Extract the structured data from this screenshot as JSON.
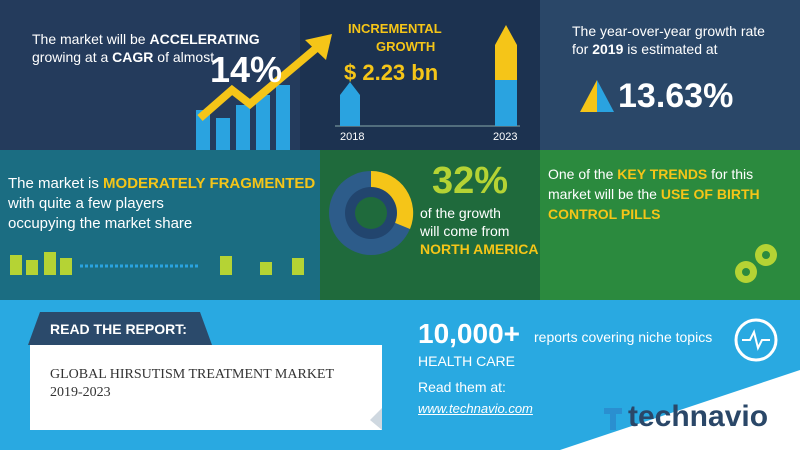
{
  "cagr": {
    "t1": "The market will be",
    "h1": "ACCELERATING",
    "t2": "growing at a",
    "h2": "CAGR",
    "t3": "of almost",
    "value": "14%"
  },
  "incremental": {
    "label1": "INCREMENTAL",
    "label2": "GROWTH",
    "value": "$ 2.23 bn",
    "start_year": "2018",
    "end_year": "2023"
  },
  "yoy": {
    "t1": "The year-over-year growth rate",
    "t2": "for",
    "year": "2019",
    "t3": "is estimated at",
    "value": "13.63%"
  },
  "fragmented": {
    "t1": "The market is",
    "highlight": "MODERATELY FRAGMENTED",
    "t2": "with quite a few players",
    "t3": "occupying the market share"
  },
  "region": {
    "value": "32%",
    "t1": "of the growth",
    "t2": "will come from",
    "region": "NORTH AMERICA"
  },
  "trends": {
    "t1": "One of the",
    "h1": "KEY TRENDS",
    "t2": "for this",
    "t3": "market will be the",
    "h2": "USE OF BIRTH",
    "h3": "CONTROL PILLS"
  },
  "report": {
    "label": "READ THE REPORT:",
    "title1": "GLOBAL HIRSUTISM TREATMENT MARKET",
    "title2": "2019-2023"
  },
  "reports": {
    "count": "10,000+",
    "text": "reports covering niche topics",
    "category": "HEALTH CARE",
    "read": "Read them at:",
    "url": "www.technavio.com"
  },
  "brand": "technavio"
}
